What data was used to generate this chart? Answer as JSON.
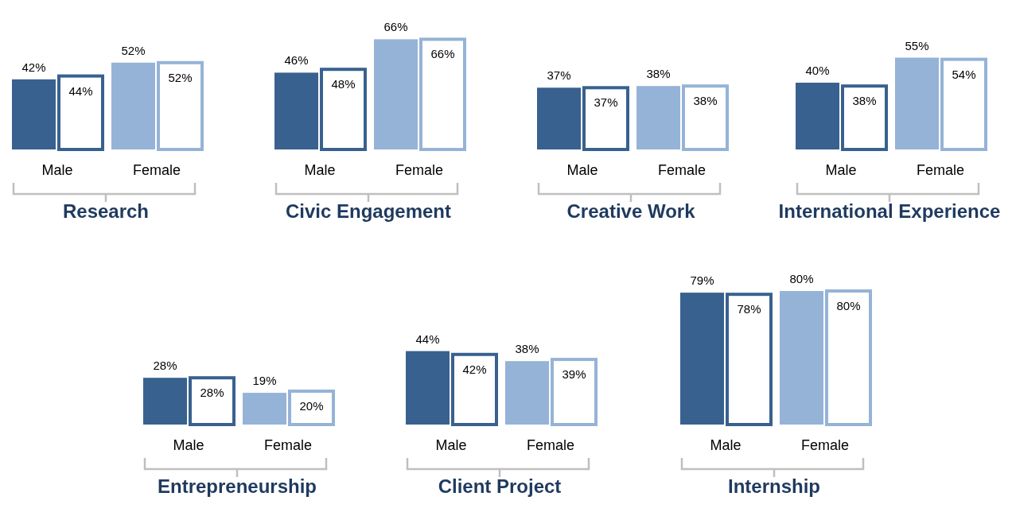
{
  "chart_data": [
    {
      "type": "bar",
      "title": "Research",
      "categories": [
        "Male",
        "Female"
      ],
      "series": [
        {
          "colors": [
            "#38618f",
            "#95b3d7"
          ],
          "values": [
            42,
            52
          ],
          "value_labels": [
            "42%",
            "52%"
          ]
        },
        {
          "colors": [
            "#38618f",
            "#95b3d7"
          ],
          "values": [
            44,
            52
          ],
          "value_labels": [
            "44%",
            "52%"
          ]
        }
      ]
    },
    {
      "type": "bar",
      "title": "Civic Engagement",
      "categories": [
        "Male",
        "Female"
      ],
      "series": [
        {
          "colors": [
            "#38618f",
            "#95b3d7"
          ],
          "values": [
            46,
            66
          ],
          "value_labels": [
            "46%",
            "66%"
          ]
        },
        {
          "colors": [
            "#38618f",
            "#95b3d7"
          ],
          "values": [
            48,
            66
          ],
          "value_labels": [
            "48%",
            "66%"
          ]
        }
      ]
    },
    {
      "type": "bar",
      "title": "Creative Work",
      "categories": [
        "Male",
        "Female"
      ],
      "series": [
        {
          "colors": [
            "#38618f",
            "#95b3d7"
          ],
          "values": [
            37,
            38
          ],
          "value_labels": [
            "37%",
            "38%"
          ]
        },
        {
          "colors": [
            "#38618f",
            "#95b3d7"
          ],
          "values": [
            37,
            38
          ],
          "value_labels": [
            "37%",
            "38%"
          ]
        }
      ]
    },
    {
      "type": "bar",
      "title": "International Experience",
      "categories": [
        "Male",
        "Female"
      ],
      "series": [
        {
          "colors": [
            "#38618f",
            "#95b3d7"
          ],
          "values": [
            40,
            55
          ],
          "value_labels": [
            "40%",
            "55%"
          ]
        },
        {
          "colors": [
            "#38618f",
            "#95b3d7"
          ],
          "values": [
            38,
            54
          ],
          "value_labels": [
            "38%",
            "54%"
          ]
        }
      ]
    },
    {
      "type": "bar",
      "title": "Entrepreneurship",
      "categories": [
        "Male",
        "Female"
      ],
      "series": [
        {
          "colors": [
            "#38618f",
            "#95b3d7"
          ],
          "values": [
            28,
            19
          ],
          "value_labels": [
            "28%",
            "19%"
          ]
        },
        {
          "colors": [
            "#38618f",
            "#95b3d7"
          ],
          "values": [
            28,
            20
          ],
          "value_labels": [
            "28%",
            "20%"
          ]
        }
      ]
    },
    {
      "type": "bar",
      "title": "Client Project",
      "categories": [
        "Male",
        "Female"
      ],
      "series": [
        {
          "colors": [
            "#38618f",
            "#95b3d7"
          ],
          "values": [
            44,
            38
          ],
          "value_labels": [
            "44%",
            "38%"
          ]
        },
        {
          "colors": [
            "#38618f",
            "#95b3d7"
          ],
          "values": [
            42,
            39
          ],
          "value_labels": [
            "42%",
            "39%"
          ]
        }
      ]
    },
    {
      "type": "bar",
      "title": "Internship",
      "categories": [
        "Male",
        "Female"
      ],
      "series": [
        {
          "colors": [
            "#38618f",
            "#95b3d7"
          ],
          "values": [
            79,
            80
          ],
          "value_labels": [
            "79%",
            "80%"
          ]
        },
        {
          "colors": [
            "#38618f",
            "#95b3d7"
          ],
          "values": [
            78,
            80
          ],
          "value_labels": [
            "78%",
            "80%"
          ]
        }
      ]
    }
  ]
}
